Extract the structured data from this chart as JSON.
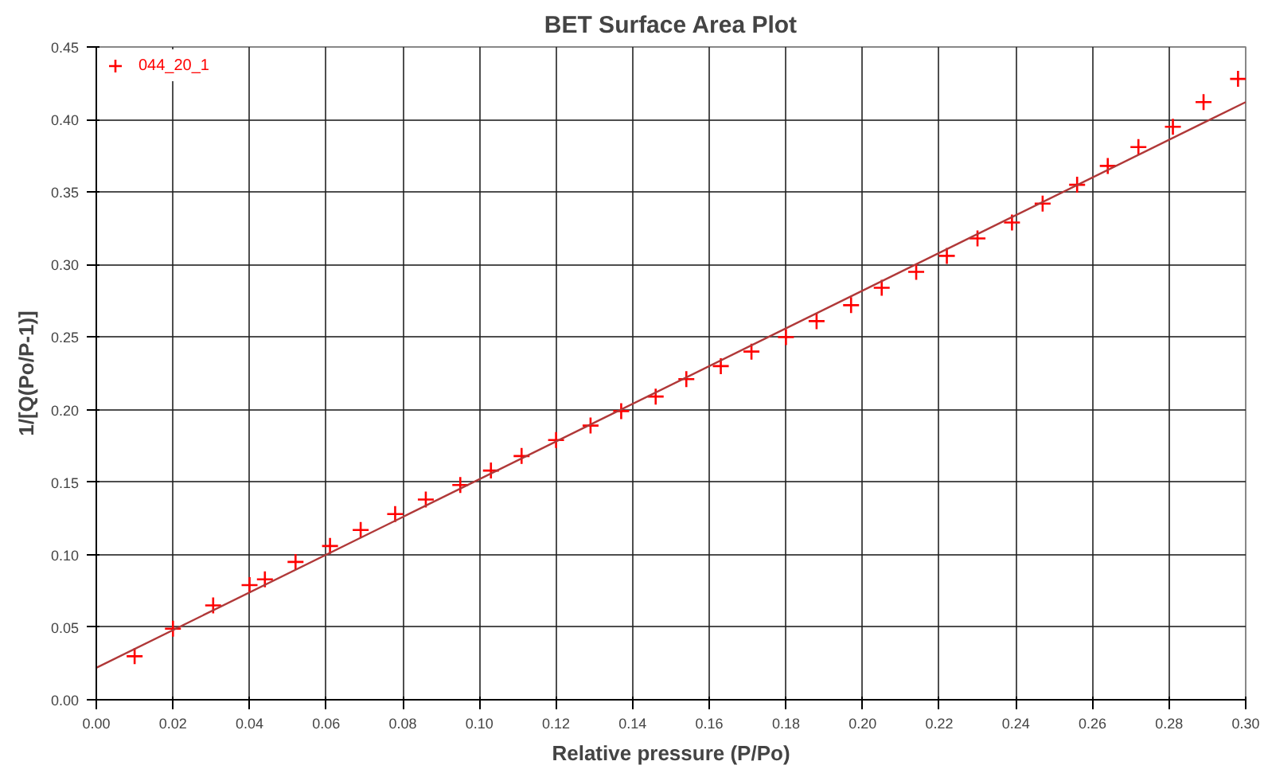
{
  "chart_data": {
    "type": "scatter",
    "title": "BET Surface Area Plot",
    "xlabel": "Relative pressure (P/Po)",
    "ylabel": "1/[Q(Po/P-1)]",
    "x": [
      0.01,
      0.02,
      0.0305,
      0.04,
      0.044,
      0.052,
      0.061,
      0.069,
      0.078,
      0.086,
      0.095,
      0.103,
      0.111,
      0.12,
      0.129,
      0.137,
      0.146,
      0.154,
      0.163,
      0.171,
      0.18,
      0.188,
      0.197,
      0.205,
      0.214,
      0.222,
      0.23,
      0.239,
      0.247,
      0.256,
      0.264,
      0.272,
      0.281,
      0.289,
      0.298
    ],
    "series": [
      {
        "name": "044_20_1",
        "color": "#ff0000",
        "marker": "cross",
        "values": [
          0.03,
          0.049,
          0.065,
          0.079,
          0.083,
          0.095,
          0.106,
          0.117,
          0.128,
          0.138,
          0.148,
          0.158,
          0.168,
          0.179,
          0.189,
          0.199,
          0.209,
          0.221,
          0.23,
          0.24,
          0.25,
          0.261,
          0.272,
          0.284,
          0.295,
          0.306,
          0.318,
          0.329,
          0.342,
          0.355,
          0.368,
          0.381,
          0.395,
          0.412,
          0.428
        ]
      },
      {
        "type": "line",
        "color": "#b03838",
        "x": [
          0.0,
          0.3
        ],
        "values": [
          0.022,
          0.412
        ]
      }
    ],
    "xlim": [
      0.0,
      0.3
    ],
    "ylim": [
      0.0,
      0.45
    ],
    "xticks": [
      {
        "value": 0.0,
        "label": "0.00"
      },
      {
        "value": 0.02,
        "label": "0.02"
      },
      {
        "value": 0.04,
        "label": "0.04"
      },
      {
        "value": 0.06,
        "label": "0.06"
      },
      {
        "value": 0.08,
        "label": "0.08"
      },
      {
        "value": 0.1,
        "label": "0.10"
      },
      {
        "value": 0.12,
        "label": "0.12"
      },
      {
        "value": 0.14,
        "label": "0.14"
      },
      {
        "value": 0.16,
        "label": "0.16"
      },
      {
        "value": 0.18,
        "label": "0.18"
      },
      {
        "value": 0.2,
        "label": "0.20"
      },
      {
        "value": 0.22,
        "label": "0.22"
      },
      {
        "value": 0.24,
        "label": "0.24"
      },
      {
        "value": 0.26,
        "label": "0.26"
      },
      {
        "value": 0.28,
        "label": "0.28"
      },
      {
        "value": 0.3,
        "label": "0.30"
      }
    ],
    "yticks": [
      {
        "value": 0.0,
        "label": "0.00"
      },
      {
        "value": 0.05,
        "label": "0.05"
      },
      {
        "value": 0.1,
        "label": "0.10"
      },
      {
        "value": 0.15,
        "label": "0.15"
      },
      {
        "value": 0.2,
        "label": "0.20"
      },
      {
        "value": 0.25,
        "label": "0.25"
      },
      {
        "value": 0.3,
        "label": "0.30"
      },
      {
        "value": 0.35,
        "label": "0.35"
      },
      {
        "value": 0.4,
        "label": "0.40"
      },
      {
        "value": 0.45,
        "label": "0.45"
      }
    ],
    "grid": true,
    "legend": "top left"
  }
}
